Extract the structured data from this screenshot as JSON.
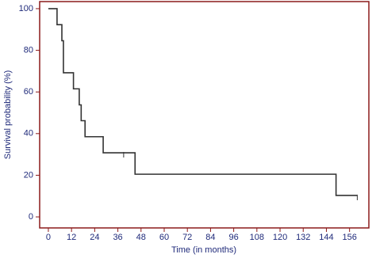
{
  "chart_data": {
    "type": "step",
    "x_label": "Time (in months)",
    "y_label": "Survival probability (%)",
    "x": [
      0,
      4.5,
      7,
      7.8,
      13,
      16,
      17,
      19,
      28.4,
      44.9,
      149,
      160
    ],
    "series": [
      {
        "color": "#333333",
        "values": [
          100,
          92.3,
          84.6,
          69.2,
          61.5,
          53.8,
          46.2,
          38.5,
          30.8,
          20.5,
          10.3,
          10.3
        ]
      }
    ],
    "censored": {
      "x": [
        39,
        160
      ],
      "values": [
        30.8,
        10.3
      ]
    },
    "xlim": [
      -4.5,
      166
    ],
    "ylim": [
      -5.3,
      103.4
    ],
    "xticks": [
      0,
      12,
      24,
      36,
      48,
      60,
      72,
      84,
      96,
      108,
      120,
      132,
      144,
      156
    ],
    "yticks": [
      0,
      20,
      40,
      60,
      80,
      100
    ],
    "frame_color": "#8b1a1a",
    "label_color": "#1f2a7a"
  }
}
